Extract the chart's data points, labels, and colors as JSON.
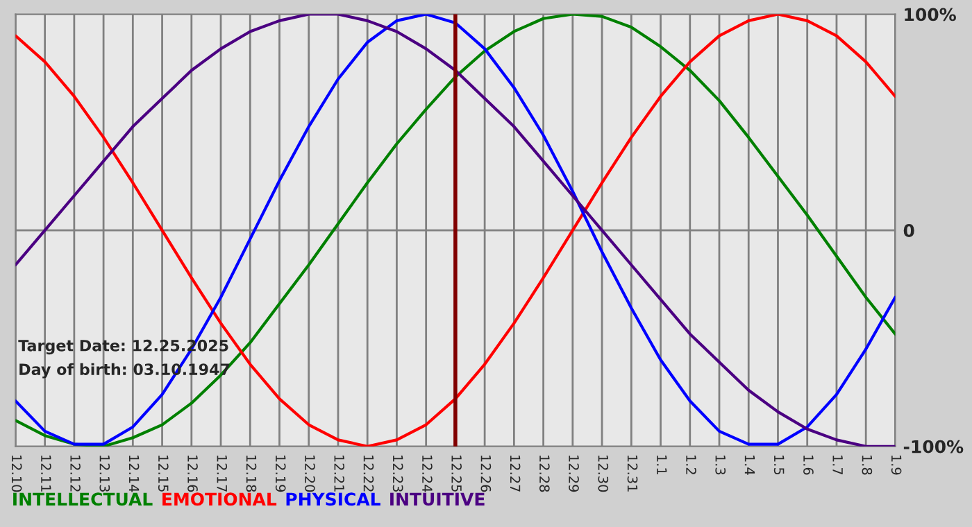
{
  "chart_data": {
    "type": "line",
    "categories": [
      "12.10",
      "12.11",
      "12.12",
      "12.13",
      "12.14",
      "12.15",
      "12.16",
      "12.17",
      "12.18",
      "12.19",
      "12.20",
      "12.21",
      "12.22",
      "12.23",
      "12.24",
      "12.25",
      "12.26",
      "12.27",
      "12.28",
      "12.29",
      "12.30",
      "12.31",
      "1.1",
      "1.2",
      "1.3",
      "1.4",
      "1.5",
      "1.6",
      "1.7",
      "1.8",
      "1.9"
    ],
    "series": [
      {
        "name": "INTELLECTUAL",
        "color": "#008000",
        "values": [
          -88,
          -95,
          -99,
          -100,
          -96,
          -90,
          -80,
          -67,
          -52,
          -34,
          -16,
          3,
          22,
          40,
          56,
          71,
          83,
          92,
          98,
          100,
          99,
          94,
          85,
          74,
          60,
          43,
          25,
          7,
          -12,
          -31,
          -48
        ]
      },
      {
        "name": "EMOTIONAL",
        "color": "#ff0000",
        "values": [
          90,
          78,
          62,
          43,
          22,
          0,
          -22,
          -43,
          -62,
          -78,
          -90,
          -97,
          -100,
          -97,
          -90,
          -78,
          -62,
          -43,
          -22,
          0,
          22,
          43,
          62,
          78,
          90,
          97,
          100,
          97,
          90,
          78,
          62
        ]
      },
      {
        "name": "PHYSICAL",
        "color": "#0000ff",
        "values": [
          -79,
          -93,
          -99,
          -99,
          -91,
          -76,
          -55,
          -31,
          -4,
          23,
          48,
          70,
          87,
          97,
          100,
          96,
          84,
          66,
          44,
          18,
          -10,
          -36,
          -60,
          -79,
          -93,
          -99,
          -99,
          -91,
          -76,
          -55,
          -31
        ]
      },
      {
        "name": "INTUITIVE",
        "color": "#4b0082",
        "values": [
          -16,
          0,
          16,
          32,
          48,
          61,
          74,
          84,
          92,
          97,
          100,
          100,
          97,
          92,
          84,
          74,
          61,
          48,
          32,
          16,
          0,
          -16,
          -32,
          -48,
          -61,
          -74,
          -84,
          -92,
          -97,
          -100,
          -100
        ]
      }
    ],
    "ylim": [
      -100,
      100
    ],
    "yticks": [
      {
        "value": 100,
        "label": "100%"
      },
      0,
      {
        "value": -100,
        "label": "-100%"
      }
    ],
    "grid": "x",
    "legend": "bottom",
    "ref_lines": [
      {
        "axis": "y",
        "value": 0,
        "color": "#808080"
      },
      {
        "axis": "x",
        "value": "12.25",
        "color": "#800000"
      }
    ],
    "annotations": [
      "Target Date: 12.25.2025",
      "Day of birth: 03.10.1947"
    ]
  }
}
